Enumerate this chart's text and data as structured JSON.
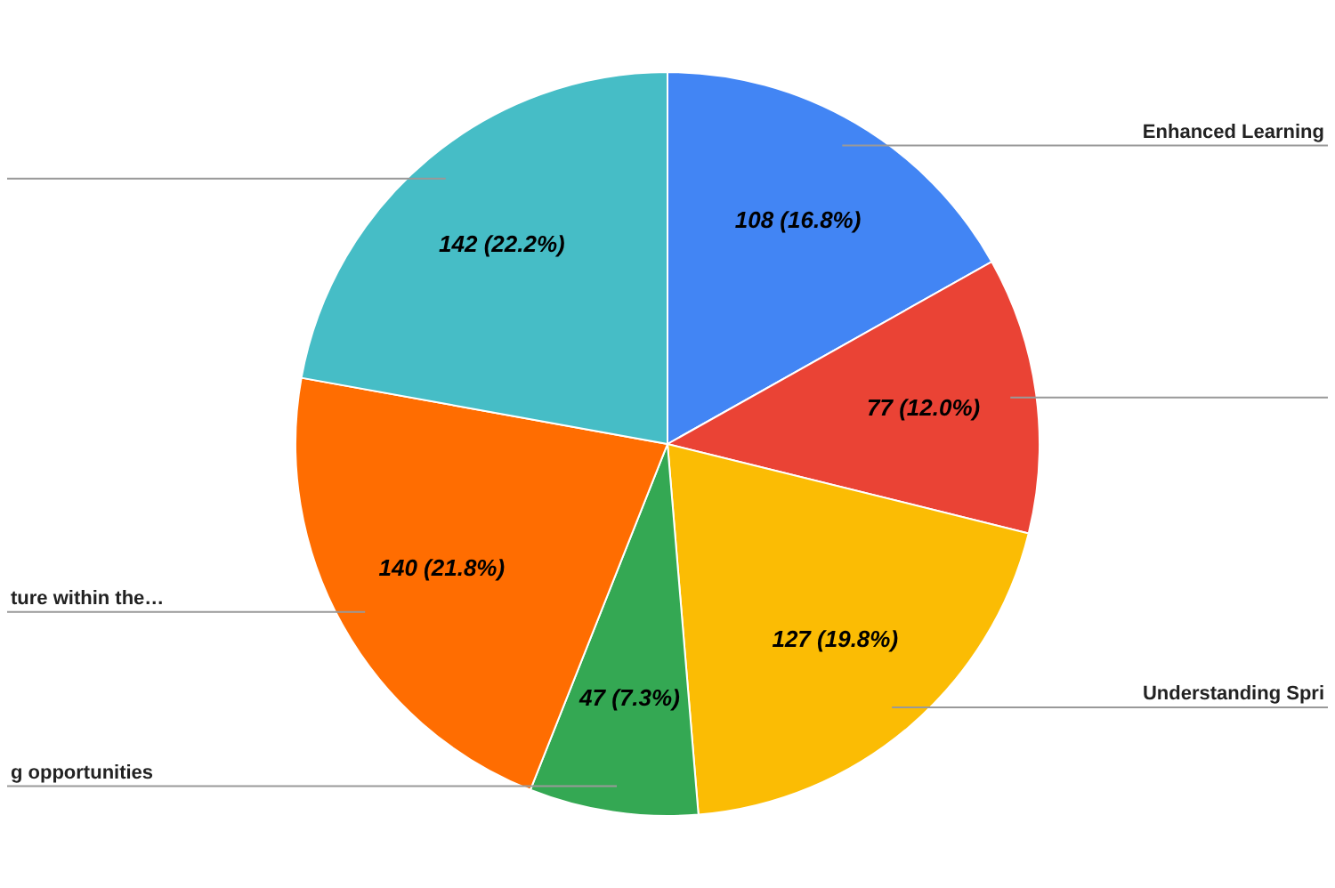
{
  "chart_data": {
    "type": "pie",
    "categories": [
      "Enhanced Learning",
      null,
      "Understanding Spri",
      "g opportunities",
      "ture within the…",
      null
    ],
    "values": [
      108,
      77,
      127,
      47,
      140,
      142
    ],
    "colors": [
      "#4285f4",
      "#ea4335",
      "#fbbc04",
      "#34a853",
      "#ff6d01",
      "#46bdc6"
    ],
    "value_labels": [
      "108 (16.8%)",
      "77 (12.0%)",
      "127 (19.8%)",
      "47 (7.3%)",
      "140 (21.8%)",
      "142 (22.2%)"
    ],
    "legend": false
  }
}
